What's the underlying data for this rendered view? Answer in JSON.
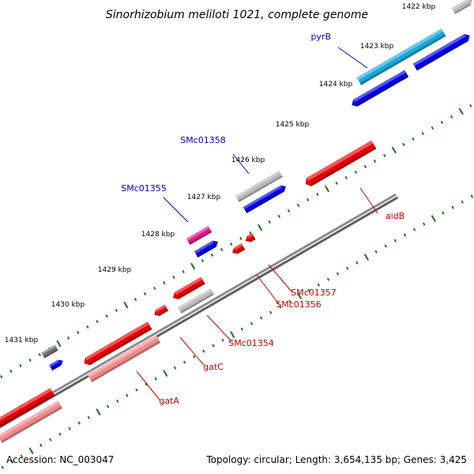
{
  "title": "Sinorhizobium meliloti 1021, complete genome",
  "footer": {
    "accession": "Accession: NC_003047",
    "summary": "Topology: circular; Length: 3,654,135 bp; Genes: 3,425"
  },
  "colors": {
    "backbone": "#808080",
    "tick": "#1c7a1c",
    "forward_label": "#0000cc",
    "reverse_label": "#cc0000",
    "feature_red": "#e60000",
    "feature_pink_red": "#f08a8a",
    "feature_blue": "#0000e6",
    "feature_cyan": "#1aa7d8",
    "feature_magenta": "#e0148c",
    "feature_gray": "#b8b8b8",
    "feature_dark_gray": "#6e6e6e"
  },
  "scale": {
    "unit": "kbp",
    "tick_labels": [
      "1422 kbp",
      "1423 kbp",
      "1424 kbp",
      "1425 kbp",
      "1426 kbp",
      "1427 kbp",
      "1428 kbp",
      "1429 kbp",
      "1430 kbp",
      "1431 kbp"
    ]
  },
  "features": [
    {
      "strand": "forward",
      "color": "feature_gray",
      "label": ""
    },
    {
      "strand": "forward",
      "color": "feature_cyan",
      "label": "pyrB"
    },
    {
      "strand": "forward",
      "color": "feature_blue",
      "label": ""
    },
    {
      "strand": "forward",
      "color": "feature_blue",
      "label": ""
    },
    {
      "strand": "forward",
      "color": "feature_gray",
      "label": "SMc01358"
    },
    {
      "strand": "forward",
      "color": "feature_blue",
      "label": ""
    },
    {
      "strand": "forward",
      "color": "feature_magenta",
      "label": "SMc01355"
    },
    {
      "strand": "forward",
      "color": "feature_blue",
      "label": ""
    },
    {
      "strand": "forward",
      "color": "feature_dark_gray",
      "label": ""
    },
    {
      "strand": "forward",
      "color": "feature_blue",
      "label": ""
    },
    {
      "strand": "reverse",
      "color": "feature_red",
      "label": "aidB"
    },
    {
      "strand": "reverse",
      "color": "feature_red",
      "label": "SMc01357"
    },
    {
      "strand": "reverse",
      "color": "feature_red",
      "label": "SMc01356"
    },
    {
      "strand": "reverse",
      "color": "feature_red",
      "label": ""
    },
    {
      "strand": "reverse",
      "color": "feature_gray",
      "label": "SMc01354"
    },
    {
      "strand": "reverse",
      "color": "feature_red",
      "label": "gatC"
    },
    {
      "strand": "reverse",
      "color": "feature_red",
      "label": ""
    },
    {
      "strand": "reverse",
      "color": "feature_pink_red",
      "label": "gatA"
    },
    {
      "strand": "reverse",
      "color": "feature_red",
      "label": ""
    },
    {
      "strand": "reverse",
      "color": "feature_pink_red",
      "label": ""
    }
  ]
}
